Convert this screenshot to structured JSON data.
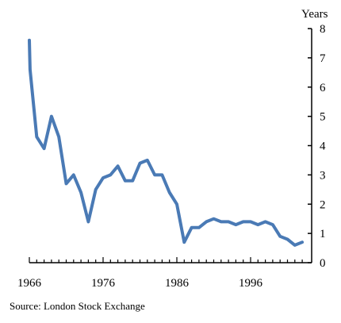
{
  "chart_data": {
    "type": "line",
    "title": "",
    "xlabel": "",
    "ylabel": "Years",
    "source": "Source:  London Stock Exchange",
    "xlim": [
      1966,
      2002
    ],
    "ylim": [
      0,
      8
    ],
    "x_ticks": [
      1966,
      1976,
      1986,
      1996
    ],
    "y_ticks": [
      0,
      1,
      2,
      3,
      4,
      5,
      6,
      7,
      8
    ],
    "y_axis_side": "right",
    "grid": false,
    "legend": "none",
    "line_color": "#4a7ab5",
    "series": [
      {
        "x": [
          1966,
          1966.1,
          1967,
          1968,
          1969,
          1970,
          1971,
          1972,
          1973,
          1974,
          1975,
          1976,
          1977,
          1978,
          1979,
          1980,
          1981,
          1982,
          1983,
          1984,
          1985,
          1986,
          1987,
          1988,
          1989,
          1990,
          1991,
          1992,
          1993,
          1994,
          1995,
          1996,
          1997,
          1998,
          1999,
          2000,
          2001,
          2002,
          2003
        ],
        "values": [
          7.6,
          6.6,
          4.3,
          3.9,
          5.0,
          4.3,
          2.7,
          3.0,
          2.4,
          1.4,
          2.5,
          2.9,
          3.0,
          3.3,
          2.8,
          2.8,
          3.4,
          3.5,
          3.0,
          3.0,
          2.4,
          2.0,
          0.7,
          1.2,
          1.2,
          1.4,
          1.5,
          1.4,
          1.4,
          1.3,
          1.4,
          1.4,
          1.3,
          1.4,
          1.3,
          0.9,
          0.8,
          0.6,
          0.7
        ]
      }
    ]
  }
}
